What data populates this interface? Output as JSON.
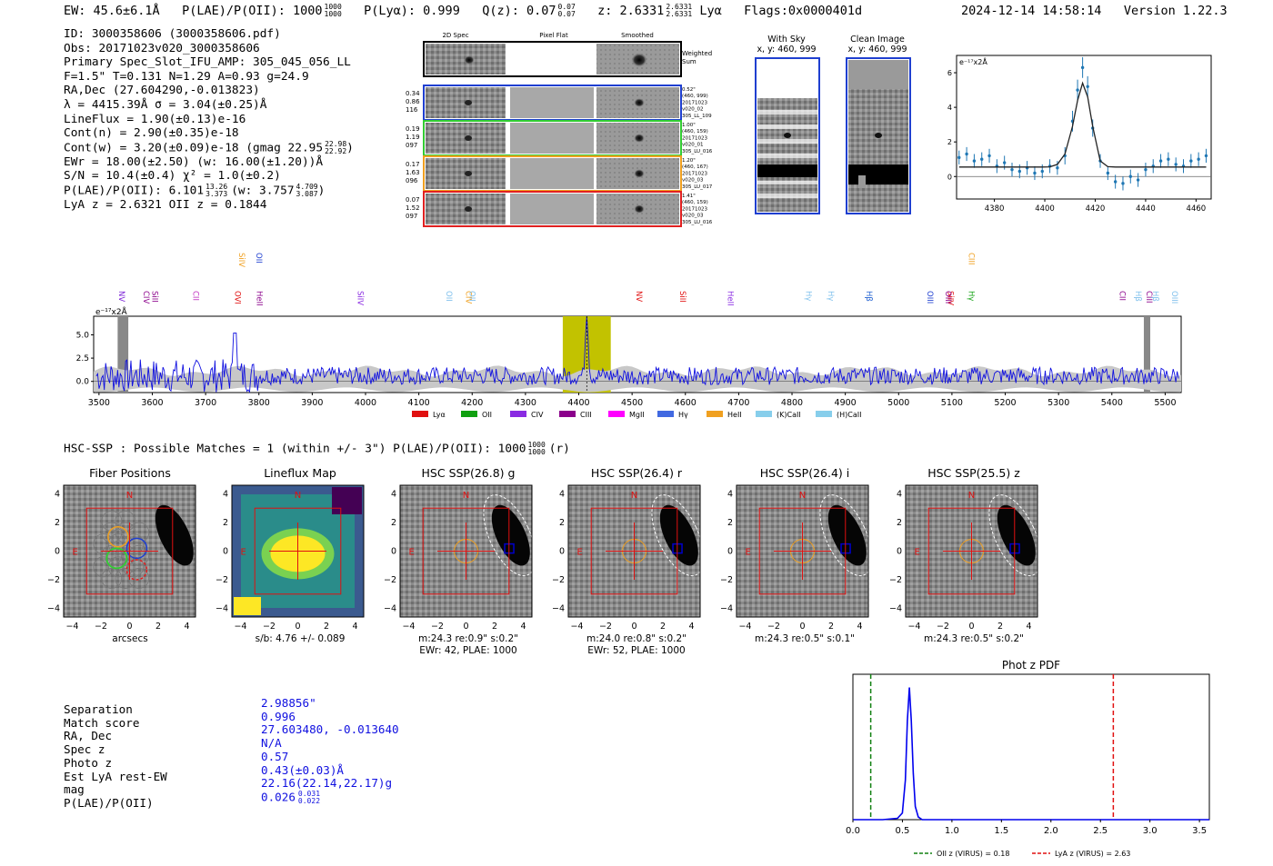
{
  "header": {
    "ew": "EW: 45.6±6.1Å",
    "plae": "P(LAE)/P(OII): 1000",
    "plae_hi": "1000",
    "plae_lo": "1000",
    "plya": "P(Lyα): 0.999",
    "qz": "Q(z): 0.07",
    "qz_hi": "0.07",
    "qz_lo": "0.07",
    "z": "z: 2.6331",
    "z_hi": "2.6331",
    "z_lo": "2.6331",
    "z_line": "Lyα",
    "flags": "Flags:0x0000401d",
    "timestamp": "2024-12-14 14:58:14",
    "version": "Version 1.22.3"
  },
  "info": {
    "lines": [
      "ID: 3000358606 (3000358606.pdf)",
      "Obs: 20171023v020_3000358606",
      "Primary Spec_Slot_IFU_AMP: 305_045_056_LL",
      "F=1.5\"  T=0.131  N=1.29  A=0.93  g=24.9",
      "RA,Dec (27.604290,-0.013823)",
      "λ = 4415.39Å  σ = 3.04(±0.25)Å",
      "LineFlux = 1.90(±0.13)e-16",
      "Cont(n) = 2.90(±0.35)e-18",
      "Cont(w) = 3.20(±0.09)e-18 (gmag 22.95",
      "EWr = 18.00(±2.50) (w: 16.00(±1.20))Å",
      "S/N = 10.4(±0.4)  χ² = 1.0(±0.2)",
      "P(LAE)/P(OII): 6.101",
      "LyA z = 2.6321  OII z = 0.1844"
    ],
    "gmag_hi": "22.98",
    "gmag_lo": "22.92",
    "plae_hi": "13.26",
    "plae_lo": "3.373",
    "plae_w": "(w: 3.757",
    "plae_w_hi": "4.709",
    "plae_w_lo": "3.087",
    "plae_w_close": ")"
  },
  "cutouts": {
    "col_2d": "2D Spec",
    "col_flat": "Pixel Flat",
    "col_smooth": "Smoothed",
    "weighted": "Weighted Sum",
    "rows": [
      {
        "nums": [
          "0.34",
          "0.86",
          "116"
        ],
        "meta": [
          "0.52\"",
          "(460, 999)",
          "20171023",
          "v020_02",
          "305_LL_109"
        ],
        "color": "#1f3fd0"
      },
      {
        "nums": [
          "0.19",
          "1.19",
          "097"
        ],
        "meta": [
          "1.00\"",
          "(460, 159)",
          "20171023",
          "v020_01",
          "305_LU_016"
        ],
        "color": "#33cc33"
      },
      {
        "nums": [
          "0.17",
          "1.63",
          "096"
        ],
        "meta": [
          "1.20\"",
          "(460, 167)",
          "20171023",
          "v020_03",
          "305_LU_017"
        ],
        "color": "#f0a020"
      },
      {
        "nums": [
          "0.07",
          "1.52",
          "097"
        ],
        "meta": [
          "1.41\"",
          "(460, 159)",
          "20171023",
          "v020_03",
          "305_LU_016"
        ],
        "color": "#e02020"
      }
    ],
    "with_sky_title": "With Sky",
    "with_sky_xy": "x, y: 460, 999",
    "clean_title": "Clean Image",
    "clean_xy": "x, y: 460, 999"
  },
  "zoom_chart": {
    "ylabel": "e⁻¹⁷x2Å",
    "xticks": [
      "4380",
      "4400",
      "4420",
      "4440",
      "4460"
    ],
    "yticks": [
      "0",
      "2",
      "4",
      "6"
    ]
  },
  "spectrum": {
    "ylabel": "e⁻¹⁷x2Å",
    "yticks": [
      "0.0",
      "2.5",
      "5.0"
    ],
    "xticks": [
      "3500",
      "3600",
      "3700",
      "3800",
      "3900",
      "4000",
      "4100",
      "4200",
      "4300",
      "4400",
      "4500",
      "4600",
      "4700",
      "4800",
      "4900",
      "5000",
      "5100",
      "5200",
      "5300",
      "5400",
      "5500"
    ],
    "lines": [
      {
        "label": "NV",
        "x": 3533,
        "color": "#7a1fd6"
      },
      {
        "label": "CIV",
        "x": 3579,
        "color": "#8b008b"
      },
      {
        "label": "SiII",
        "x": 3595,
        "color": "#8b008b"
      },
      {
        "label": "CII",
        "x": 3672,
        "color": "#c030c0"
      },
      {
        "label": "OVI",
        "x": 3750,
        "color": "#e01010"
      },
      {
        "label": "SiIV",
        "x": 3758,
        "color": "#f0a020"
      },
      {
        "label": "HeII",
        "x": 3791,
        "color": "#8b008b"
      },
      {
        "label": "OII",
        "x": 3790,
        "color": "#2040d0"
      },
      {
        "label": "SiIV",
        "x": 3980,
        "color": "#8a2be2"
      },
      {
        "label": "OII",
        "x": 4147,
        "color": "#7fc0ec"
      },
      {
        "label": "CIV",
        "x": 4183,
        "color": "#f0a020"
      },
      {
        "label": "OII",
        "x": 4190,
        "color": "#7fc0ec"
      },
      {
        "label": "NV",
        "x": 4503,
        "color": "#e01010"
      },
      {
        "label": "SiII",
        "x": 4585,
        "color": "#e01010"
      },
      {
        "label": "HeII",
        "x": 4675,
        "color": "#8a2be2"
      },
      {
        "label": "Hγ",
        "x": 4821,
        "color": "#7fc0ec"
      },
      {
        "label": "Hγ",
        "x": 4863,
        "color": "#7fc0ec"
      },
      {
        "label": "Hβ",
        "x": 4935,
        "color": "#2060d0"
      },
      {
        "label": "OIII",
        "x": 5049,
        "color": "#2040d0"
      },
      {
        "label": "SiIV",
        "x": 5087,
        "color": "#e01010"
      },
      {
        "label": "OIII",
        "x": 5083,
        "color": "#8b008b"
      },
      {
        "label": "CIII",
        "x": 5127,
        "color": "#f0a020"
      },
      {
        "label": "Hγ",
        "x": 5127,
        "color": "#10a010"
      },
      {
        "label": "CII",
        "x": 5410,
        "color": "#8b008b"
      },
      {
        "label": "Hβ",
        "x": 5440,
        "color": "#7fc0ec"
      },
      {
        "label": "CIII",
        "x": 5460,
        "color": "#8b008b"
      },
      {
        "label": "Hβ",
        "x": 5472,
        "color": "#7fc0ec"
      },
      {
        "label": "OIII",
        "x": 5508,
        "color": "#7fc0ec"
      }
    ],
    "highlight": [
      4370,
      4460
    ],
    "legend": [
      {
        "label": "Lyα",
        "color": "#e01010"
      },
      {
        "label": "OII",
        "color": "#10a010"
      },
      {
        "label": "CIV",
        "color": "#8a2be2"
      },
      {
        "label": "CIII",
        "color": "#8b008b"
      },
      {
        "label": "MgII",
        "color": "#ff00ff"
      },
      {
        "label": "Hγ",
        "color": "#4169e1"
      },
      {
        "label": "HeII",
        "color": "#f0a020"
      },
      {
        "label": "(K)CaII",
        "color": "#87ceeb"
      },
      {
        "label": "(H)CaII",
        "color": "#87ceeb"
      }
    ]
  },
  "hsc_header": "HSC-SSP : Possible Matches = 1 (within +/- 3\")  P(LAE)/P(OII): 1000",
  "hsc_header_hi": "1000",
  "hsc_header_lo": "1000",
  "hsc_header_tail": "(r)",
  "panels": [
    {
      "title": "Fiber Positions",
      "caption1": "arcsecs",
      "caption2": ""
    },
    {
      "title": "Lineflux Map",
      "caption1": "s/b: 4.76 +/- 0.089",
      "caption2": ""
    },
    {
      "title": "HSC SSP(26.8) g",
      "caption1": "m:24.3  re:0.9\"  s:0.2\"",
      "caption2": "EWr: 42, PLAE: 1000"
    },
    {
      "title": "HSC SSP(26.4) r",
      "caption1": "m:24.0  re:0.8\"  s:0.2\"",
      "caption2": "EWr: 52, PLAE: 1000"
    },
    {
      "title": "HSC SSP(26.4) i",
      "caption1": "m:24.3  re:0.5\"  s:0.1\"",
      "caption2": ""
    },
    {
      "title": "HSC SSP(25.5) z",
      "caption1": "m:24.3  re:0.5\"  s:0.2\"",
      "caption2": ""
    }
  ],
  "panel_axis": {
    "ticks": [
      "−4",
      "−2",
      "0",
      "2",
      "4"
    ],
    "n": "N",
    "e": "E"
  },
  "summary": {
    "labels": [
      "Separation",
      "Match score",
      "RA, Dec",
      "Spec z",
      "Photo z",
      "Est LyA rest-EW",
      "mag",
      "P(LAE)/P(OII)"
    ],
    "values": [
      "2.98856\"",
      "0.996",
      "27.603480, -0.013640",
      "N/A",
      "0.57",
      "0.43(±0.03)Å",
      "22.16(22.14,22.17)g",
      "0.026"
    ],
    "plae_hi": "0.031",
    "plae_lo": "0.022"
  },
  "chart_data": [
    {
      "type": "line",
      "title": "",
      "xlabel": "",
      "ylabel": "e⁻¹⁷x2Å",
      "xlim": [
        4365,
        4466
      ],
      "ylim": [
        -1.3,
        7.0
      ],
      "x": [
        4366,
        4369,
        4372,
        4375,
        4378,
        4381,
        4384,
        4387,
        4390,
        4393,
        4396,
        4399,
        4402,
        4405,
        4408,
        4411,
        4413,
        4415,
        4417,
        4419,
        4422,
        4425,
        4428,
        4431,
        4434,
        4437,
        4440,
        4443,
        4446,
        4449,
        4452,
        4455,
        4458,
        4461,
        4464
      ],
      "series": [
        {
          "name": "data",
          "values": [
            1.1,
            1.3,
            0.9,
            1.0,
            1.2,
            0.6,
            0.8,
            0.4,
            0.3,
            0.5,
            0.2,
            0.3,
            0.6,
            0.5,
            1.2,
            3.2,
            5.0,
            6.3,
            5.2,
            2.8,
            0.9,
            0.2,
            -0.3,
            -0.4,
            0.0,
            -0.2,
            0.4,
            0.6,
            0.9,
            1.0,
            0.7,
            0.6,
            0.9,
            1.0,
            1.2
          ]
        },
        {
          "name": "fit",
          "values": [
            0.55,
            0.55,
            0.55,
            0.55,
            0.55,
            0.55,
            0.55,
            0.55,
            0.55,
            0.55,
            0.55,
            0.55,
            0.56,
            0.7,
            1.3,
            2.9,
            4.4,
            5.4,
            4.6,
            2.9,
            0.9,
            0.57,
            0.55,
            0.55,
            0.55,
            0.55,
            0.55,
            0.55,
            0.55,
            0.55,
            0.55,
            0.55,
            0.55,
            0.55,
            0.55
          ]
        }
      ],
      "errors": [
        0.4,
        0.4,
        0.4,
        0.4,
        0.4,
        0.4,
        0.4,
        0.4,
        0.4,
        0.4,
        0.4,
        0.4,
        0.4,
        0.4,
        0.5,
        0.6,
        0.6,
        0.6,
        0.6,
        0.5,
        0.4,
        0.4,
        0.4,
        0.4,
        0.4,
        0.4,
        0.4,
        0.4,
        0.4,
        0.4,
        0.4,
        0.4,
        0.4,
        0.4,
        0.4
      ]
    },
    {
      "type": "line",
      "title": "",
      "xlabel": "",
      "ylabel": "e⁻¹⁷x2Å",
      "xlim": [
        3490,
        5530
      ],
      "ylim": [
        -1.2,
        7.0
      ],
      "series": [
        {
          "name": "full spectrum",
          "peak_wavelength": 4415,
          "peak_value": 7.0
        }
      ],
      "highlight_range": [
        4370,
        4460
      ]
    },
    {
      "type": "line",
      "title": "Phot z PDF",
      "xlabel": "",
      "ylabel": "",
      "xlim": [
        0.0,
        3.6
      ],
      "ylim": [
        0,
        1.1
      ],
      "xticks": [
        "0.0",
        "0.5",
        "1.0",
        "1.5",
        "2.0",
        "2.5",
        "3.0",
        "3.5"
      ],
      "x": [
        0.0,
        0.3,
        0.45,
        0.5,
        0.53,
        0.55,
        0.57,
        0.59,
        0.61,
        0.63,
        0.66,
        0.7,
        1.0,
        2.0,
        3.6
      ],
      "series": [
        {
          "name": "PDF",
          "values": [
            0.0,
            0.0,
            0.01,
            0.05,
            0.3,
            0.75,
            1.0,
            0.75,
            0.35,
            0.1,
            0.02,
            0.0,
            0.0,
            0.0,
            0.0
          ]
        }
      ],
      "vlines": [
        {
          "label": "OII z (VIRUS) = 0.18",
          "x": 0.18,
          "color": "#108010"
        },
        {
          "label": "LyA z (VIRUS) = 2.63",
          "x": 2.63,
          "color": "#e01010"
        }
      ]
    }
  ]
}
